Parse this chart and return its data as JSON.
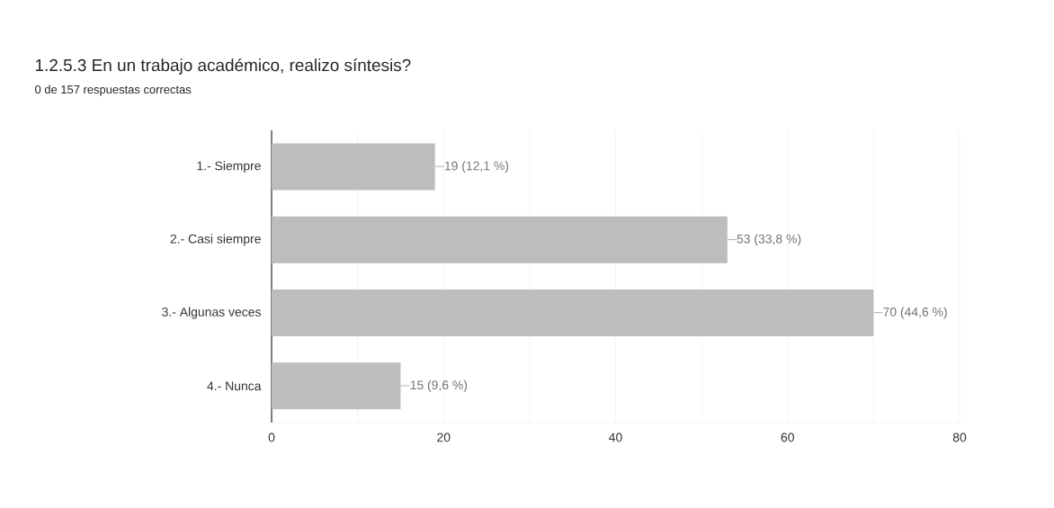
{
  "chart_data": {
    "type": "bar",
    "orientation": "horizontal",
    "title": "1.2.5.3 En un trabajo académico, realizo síntesis?",
    "subtitle": "0 de 157 respuestas correctas",
    "categories": [
      "1.- Siempre",
      "2.- Casi siempre",
      "3.- Algunas veces",
      "4.- Nunca"
    ],
    "values": [
      19,
      53,
      70,
      15
    ],
    "value_labels": [
      "19 (12,1 %)",
      "53 (33,8 %)",
      "70 (44,6 %)",
      "15 (9,6 %)"
    ],
    "color": "#bdbdbd",
    "xlim": [
      0,
      80
    ],
    "xticks": [
      0,
      {
        "value": 10,
        "label": null
      },
      20,
      {
        "value": 30,
        "label": null
      },
      40,
      {
        "value": 50,
        "label": null
      },
      60,
      {
        "value": 70,
        "label": null
      },
      80
    ],
    "grid": "x"
  }
}
